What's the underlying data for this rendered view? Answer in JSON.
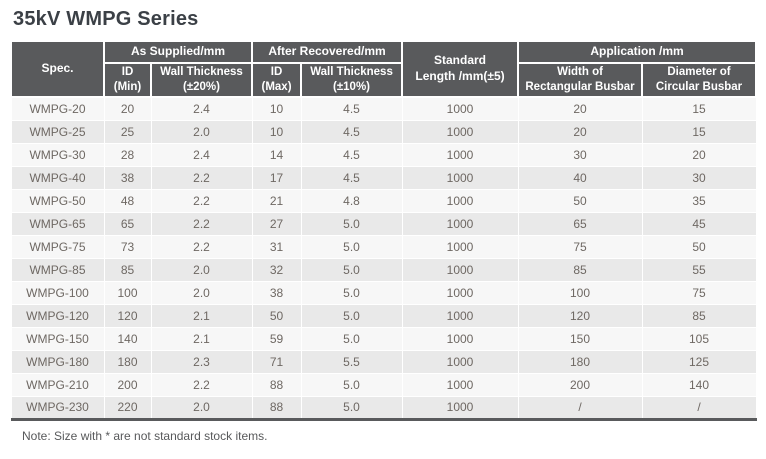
{
  "title": "35kV WMPG Series",
  "note": "Note: Size with * are not standard stock items.",
  "colors": {
    "header_bg": "#595a5c",
    "header_text": "#ffffff",
    "row_odd": "#f7f7f7",
    "row_even": "#e9e9e9",
    "body_text": "#6e6863",
    "title_color": "#3b4046"
  },
  "table": {
    "header": {
      "spec": "Spec.",
      "as_supplied_group": "As Supplied/mm",
      "after_recovered_group": "After Recovered/mm",
      "standard_length": "Standard\nLength /mm(±5)",
      "application_group": "Application /mm",
      "id_min": "ID\n(Min)",
      "wall_thickness_20": "Wall Thickness\n(±20%)",
      "id_max": "ID\n(Max)",
      "wall_thickness_10": "Wall Thickness\n(±10%)",
      "width_rect_busbar": "Width of\nRectangular Busbar",
      "diameter_circ_busbar": "Diameter of\nCircular Busbar"
    },
    "rows": [
      [
        "WMPG-20",
        "20",
        "2.4",
        "10",
        "4.5",
        "1000",
        "20",
        "15"
      ],
      [
        "WMPG-25",
        "25",
        "2.0",
        "10",
        "4.5",
        "1000",
        "20",
        "15"
      ],
      [
        "WMPG-30",
        "28",
        "2.4",
        "14",
        "4.5",
        "1000",
        "30",
        "20"
      ],
      [
        "WMPG-40",
        "38",
        "2.2",
        "17",
        "4.5",
        "1000",
        "40",
        "30"
      ],
      [
        "WMPG-50",
        "48",
        "2.2",
        "21",
        "4.8",
        "1000",
        "50",
        "35"
      ],
      [
        "WMPG-65",
        "65",
        "2.2",
        "27",
        "5.0",
        "1000",
        "65",
        "45"
      ],
      [
        "WMPG-75",
        "73",
        "2.2",
        "31",
        "5.0",
        "1000",
        "75",
        "50"
      ],
      [
        "WMPG-85",
        "85",
        "2.0",
        "32",
        "5.0",
        "1000",
        "85",
        "55"
      ],
      [
        "WMPG-100",
        "100",
        "2.0",
        "38",
        "5.0",
        "1000",
        "100",
        "75"
      ],
      [
        "WMPG-120",
        "120",
        "2.1",
        "50",
        "5.0",
        "1000",
        "120",
        "85"
      ],
      [
        "WMPG-150",
        "140",
        "2.1",
        "59",
        "5.0",
        "1000",
        "150",
        "105"
      ],
      [
        "WMPG-180",
        "180",
        "2.3",
        "71",
        "5.5",
        "1000",
        "180",
        "125"
      ],
      [
        "WMPG-210",
        "200",
        "2.2",
        "88",
        "5.0",
        "1000",
        "200",
        "140"
      ],
      [
        "WMPG-230",
        "220",
        "2.0",
        "88",
        "5.0",
        "1000",
        "/",
        "/"
      ]
    ]
  }
}
